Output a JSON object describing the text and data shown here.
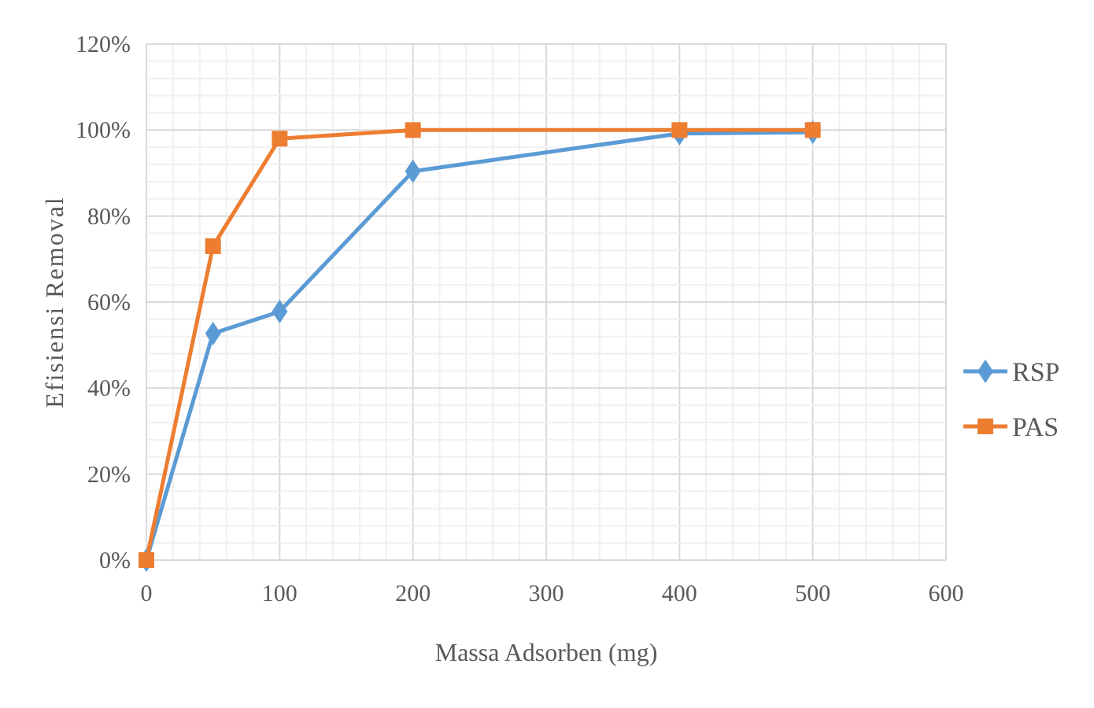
{
  "chart_data": {
    "type": "line",
    "xlabel": "Massa Adsorben (mg)",
    "ylabel": "Efisiensi Removal",
    "x": [
      0,
      50,
      100,
      200,
      400,
      500
    ],
    "series": [
      {
        "name": "RSP",
        "color": "#5b9bd5",
        "values": [
          0,
          52.7,
          57.8,
          90.4,
          99.2,
          99.5
        ],
        "marker": "diamond"
      },
      {
        "name": "PAS",
        "color": "#ed7d31",
        "values": [
          0,
          73,
          98,
          100,
          100,
          100
        ],
        "marker": "square"
      }
    ],
    "xlim": [
      0,
      600
    ],
    "xticks": [
      0,
      {
        "value": 20,
        "label": null
      },
      {
        "value": 40,
        "label": null
      },
      {
        "value": 60,
        "label": null
      },
      {
        "value": 80,
        "label": null
      },
      100,
      {
        "value": 120,
        "label": null
      },
      {
        "value": 140,
        "label": null
      },
      {
        "value": 160,
        "label": null
      },
      {
        "value": 180,
        "label": null
      },
      200,
      {
        "value": 220,
        "label": null
      },
      {
        "value": 240,
        "label": null
      },
      {
        "value": 260,
        "label": null
      },
      {
        "value": 280,
        "label": null
      },
      300,
      {
        "value": 320,
        "label": null
      },
      {
        "value": 340,
        "label": null
      },
      {
        "value": 360,
        "label": null
      },
      {
        "value": 380,
        "label": null
      },
      400,
      {
        "value": 420,
        "label": null
      },
      {
        "value": 440,
        "label": null
      },
      {
        "value": 460,
        "label": null
      },
      {
        "value": 480,
        "label": null
      },
      500,
      {
        "value": 520,
        "label": null
      },
      {
        "value": 540,
        "label": null
      },
      {
        "value": 560,
        "label": null
      },
      {
        "value": 580,
        "label": null
      },
      600
    ],
    "ylim": [
      0,
      120
    ],
    "yticks": [
      {
        "value": 0,
        "label": "0%"
      },
      {
        "value": 4,
        "label": null
      },
      {
        "value": 8,
        "label": null
      },
      {
        "value": 12,
        "label": null
      },
      {
        "value": 16,
        "label": null
      },
      {
        "value": 20,
        "label": "20%"
      },
      {
        "value": 24,
        "label": null
      },
      {
        "value": 28,
        "label": null
      },
      {
        "value": 32,
        "label": null
      },
      {
        "value": 36,
        "label": null
      },
      {
        "value": 40,
        "label": "40%"
      },
      {
        "value": 44,
        "label": null
      },
      {
        "value": 48,
        "label": null
      },
      {
        "value": 52,
        "label": null
      },
      {
        "value": 56,
        "label": null
      },
      {
        "value": 60,
        "label": "60%"
      },
      {
        "value": 64,
        "label": null
      },
      {
        "value": 68,
        "label": null
      },
      {
        "value": 72,
        "label": null
      },
      {
        "value": 76,
        "label": null
      },
      {
        "value": 80,
        "label": "80%"
      },
      {
        "value": 84,
        "label": null
      },
      {
        "value": 88,
        "label": null
      },
      {
        "value": 92,
        "label": null
      },
      {
        "value": 96,
        "label": null
      },
      {
        "value": 100,
        "label": "100%"
      },
      {
        "value": 104,
        "label": null
      },
      {
        "value": 108,
        "label": null
      },
      {
        "value": 112,
        "label": null
      },
      {
        "value": 116,
        "label": null
      },
      {
        "value": 120,
        "label": "120%"
      }
    ],
    "grid": true,
    "legend": "right",
    "line_style": "solid"
  }
}
